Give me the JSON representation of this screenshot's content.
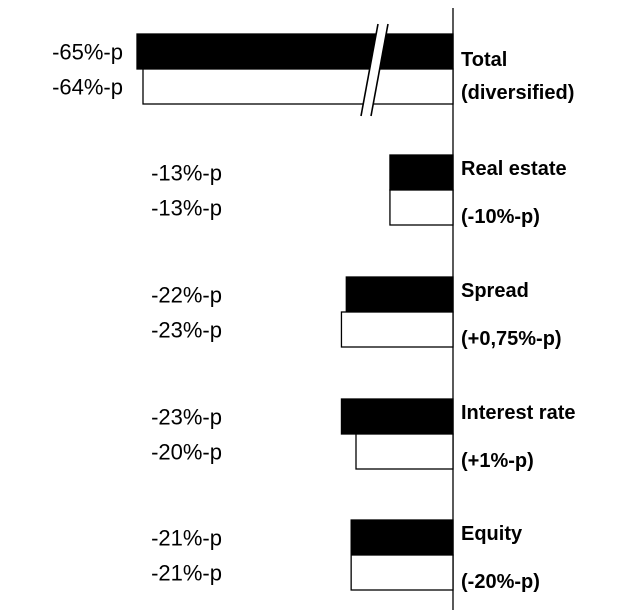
{
  "chart_data": {
    "type": "bar",
    "orientation": "horizontal",
    "categories": [
      {
        "label": [
          "Total",
          "(diversified)"
        ]
      },
      {
        "label": [
          "Real estate",
          "(-10%-p)"
        ]
      },
      {
        "label": [
          "Spread",
          "(+0,75%-p)"
        ]
      },
      {
        "label": [
          "Interest rate",
          "(+1%-p)"
        ]
      },
      {
        "label": [
          "Equity",
          "(-20%-p)"
        ]
      }
    ],
    "series": [
      {
        "color": "#000000",
        "values": [
          -65,
          -13,
          -22,
          -23,
          -21
        ],
        "value_labels": [
          "-65%-p",
          "-13%-p",
          "-22%-p",
          "-23%-p",
          "-21%-p"
        ]
      },
      {
        "color": "#ffffff",
        "values": [
          -64,
          -13,
          -23,
          -20,
          -21
        ],
        "value_labels": [
          "-64%-p",
          "-13%-p",
          "-23%-p",
          "-20%-p",
          "-21%-p"
        ]
      }
    ],
    "axis_break": {
      "category_index": 0
    },
    "legend": "none",
    "grid": false
  }
}
